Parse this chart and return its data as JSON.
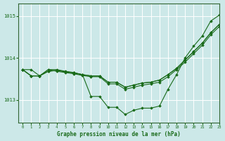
{
  "title": "Graphe pression niveau de la mer (hPa)",
  "bg_color": "#cce8e8",
  "grid_color": "#ffffff",
  "line_color": "#1a6b1a",
  "marker_color": "#1a6b1a",
  "xlim": [
    -0.5,
    23
  ],
  "ylim": [
    1012.45,
    1015.3
  ],
  "yticks": [
    1013,
    1014,
    1015
  ],
  "xticks": [
    0,
    1,
    2,
    3,
    4,
    5,
    6,
    7,
    8,
    9,
    10,
    11,
    12,
    13,
    14,
    15,
    16,
    17,
    18,
    19,
    20,
    21,
    22,
    23
  ],
  "series": [
    [
      1013.72,
      1013.72,
      1013.57,
      1013.72,
      1013.72,
      1013.68,
      1013.65,
      1013.6,
      1013.08,
      1013.08,
      1012.82,
      1012.82,
      1012.65,
      1012.75,
      1012.8,
      1012.8,
      1012.85,
      1013.25,
      1013.6,
      1014.0,
      1014.28,
      1014.52,
      1014.88,
      1015.02
    ],
    [
      1013.72,
      1013.57,
      1013.57,
      1013.72,
      1013.68,
      1013.65,
      1013.62,
      1013.58,
      1013.55,
      1013.55,
      1013.38,
      1013.38,
      1013.25,
      1013.3,
      1013.35,
      1013.38,
      1013.42,
      1013.55,
      1013.72,
      1013.9,
      1014.1,
      1014.3,
      1014.55,
      1014.75
    ],
    [
      1013.72,
      1013.57,
      1013.57,
      1013.68,
      1013.7,
      1013.67,
      1013.64,
      1013.6,
      1013.57,
      1013.57,
      1013.42,
      1013.42,
      1013.3,
      1013.35,
      1013.4,
      1013.42,
      1013.47,
      1013.6,
      1013.75,
      1013.95,
      1014.15,
      1014.35,
      1014.6,
      1014.8
    ],
    [
      1013.72,
      1013.57,
      1013.57,
      1013.68,
      1013.7,
      1013.67,
      1013.64,
      1013.6,
      1013.57,
      1013.57,
      1013.42,
      1013.42,
      1013.3,
      1013.35,
      1013.4,
      1013.42,
      1013.47,
      1013.6,
      1013.75,
      1013.95,
      1014.15,
      1014.35,
      1014.6,
      1014.8
    ]
  ]
}
